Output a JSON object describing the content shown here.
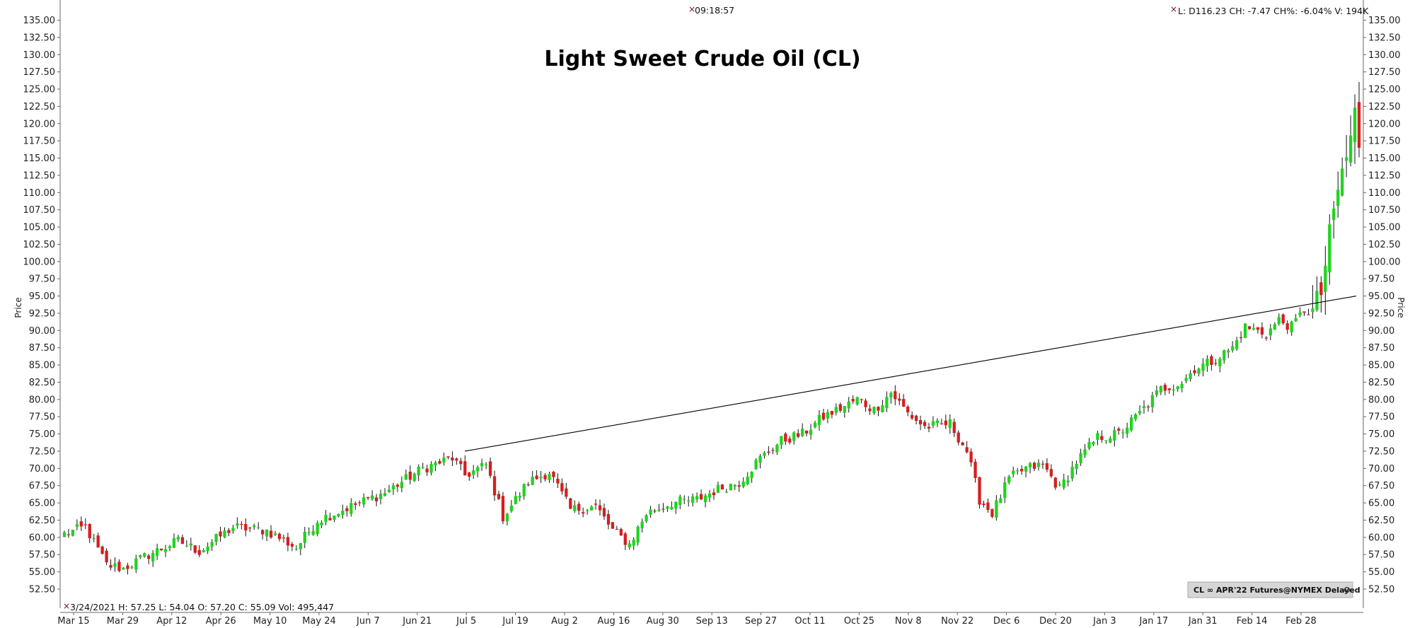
{
  "chart_data": {
    "type": "candlestick",
    "title": "Light Sweet Crude Oil (CL)",
    "ylabel": "Price",
    "ylim": [
      50.0,
      136.0
    ],
    "yticks": [
      52.5,
      55.0,
      57.5,
      60.0,
      62.5,
      65.0,
      67.5,
      70.0,
      72.5,
      75.0,
      77.5,
      80.0,
      82.5,
      85.0,
      87.5,
      90.0,
      92.5,
      95.0,
      97.5,
      100.0,
      102.5,
      105.0,
      107.5,
      110.0,
      112.5,
      115.0,
      117.5,
      120.0,
      122.5,
      125.0,
      127.5,
      130.0,
      132.5,
      135.0
    ],
    "x_tick_labels": [
      "Mar 15",
      "Mar 29",
      "Apr 12",
      "Apr 26",
      "May 10",
      "May 24",
      "Jun 7",
      "Jun 21",
      "Jul 5",
      "Jul 19",
      "Aug 2",
      "Aug 16",
      "Aug 30",
      "Sep 13",
      "Sep 27",
      "Oct 11",
      "Oct 25",
      "Nov 8",
      "Nov 22",
      "Dec 6",
      "Dec 20",
      "Jan 3",
      "Jan 17",
      "Jan 31",
      "Feb 14",
      "Feb 28"
    ],
    "candle_anchors": [
      [
        0,
        60.5
      ],
      [
        5,
        61.5
      ],
      [
        10,
        56.0
      ],
      [
        14,
        55.5
      ],
      [
        20,
        57.5
      ],
      [
        27,
        59.5
      ],
      [
        32,
        58.0
      ],
      [
        40,
        61.5
      ],
      [
        48,
        61.0
      ],
      [
        55,
        58.5
      ],
      [
        60,
        62.5
      ],
      [
        68,
        64.5
      ],
      [
        76,
        66.5
      ],
      [
        85,
        70.0
      ],
      [
        92,
        71.5
      ],
      [
        95,
        69.0
      ],
      [
        100,
        70.5
      ],
      [
        104,
        63.0
      ],
      [
        110,
        68.0
      ],
      [
        115,
        69.5
      ],
      [
        120,
        64.0
      ],
      [
        126,
        64.5
      ],
      [
        130,
        61.0
      ],
      [
        134,
        59.0
      ],
      [
        138,
        63.5
      ],
      [
        144,
        65.0
      ],
      [
        150,
        65.5
      ],
      [
        155,
        67.0
      ],
      [
        160,
        68.0
      ],
      [
        165,
        71.5
      ],
      [
        170,
        74.0
      ],
      [
        175,
        75.0
      ],
      [
        180,
        77.5
      ],
      [
        185,
        79.0
      ],
      [
        188,
        80.0
      ],
      [
        192,
        78.5
      ],
      [
        196,
        81.0
      ],
      [
        200,
        78.0
      ],
      [
        204,
        76.0
      ],
      [
        210,
        76.5
      ],
      [
        214,
        72.5
      ],
      [
        217,
        65.5
      ],
      [
        220,
        63.5
      ],
      [
        224,
        68.5
      ],
      [
        228,
        70.0
      ],
      [
        232,
        70.5
      ],
      [
        236,
        67.0
      ],
      [
        240,
        71.0
      ],
      [
        245,
        74.5
      ],
      [
        250,
        75.0
      ],
      [
        255,
        78.0
      ],
      [
        260,
        81.5
      ],
      [
        265,
        82.5
      ],
      [
        268,
        84.5
      ],
      [
        272,
        85.5
      ],
      [
        277,
        87.5
      ],
      [
        280,
        90.5
      ],
      [
        285,
        89.5
      ],
      [
        288,
        91.5
      ],
      [
        291,
        90.5
      ],
      [
        294,
        93.0
      ],
      [
        296,
        92.5
      ],
      [
        298,
        95.5
      ],
      [
        300,
        103.5
      ],
      [
        302,
        110.5
      ],
      [
        304,
        115.0
      ],
      [
        306,
        121.5
      ],
      [
        307,
        116.5
      ]
    ],
    "last_close": 116.5,
    "trendline": {
      "start": [
        "Jul 5",
        72.5
      ],
      "end": [
        "Mar 4",
        95.0
      ]
    },
    "time_label": "09:18:57",
    "header_readout": "L: D116.23 CH: -7.47 CH%: -6.04% V: 194K",
    "footer_readout": "3/24/2021  H: 57.25   L: 54.04   O: 57.20   C: 55.09   Vol: 495,447",
    "contract_badge": "CL  ∞ APR'22 Futures@NYMEX Delayed",
    "colors": {
      "up": "#1fd41f",
      "down": "#d41f1f",
      "wick": "#111111",
      "trendline": "#000000"
    },
    "grid": false
  }
}
